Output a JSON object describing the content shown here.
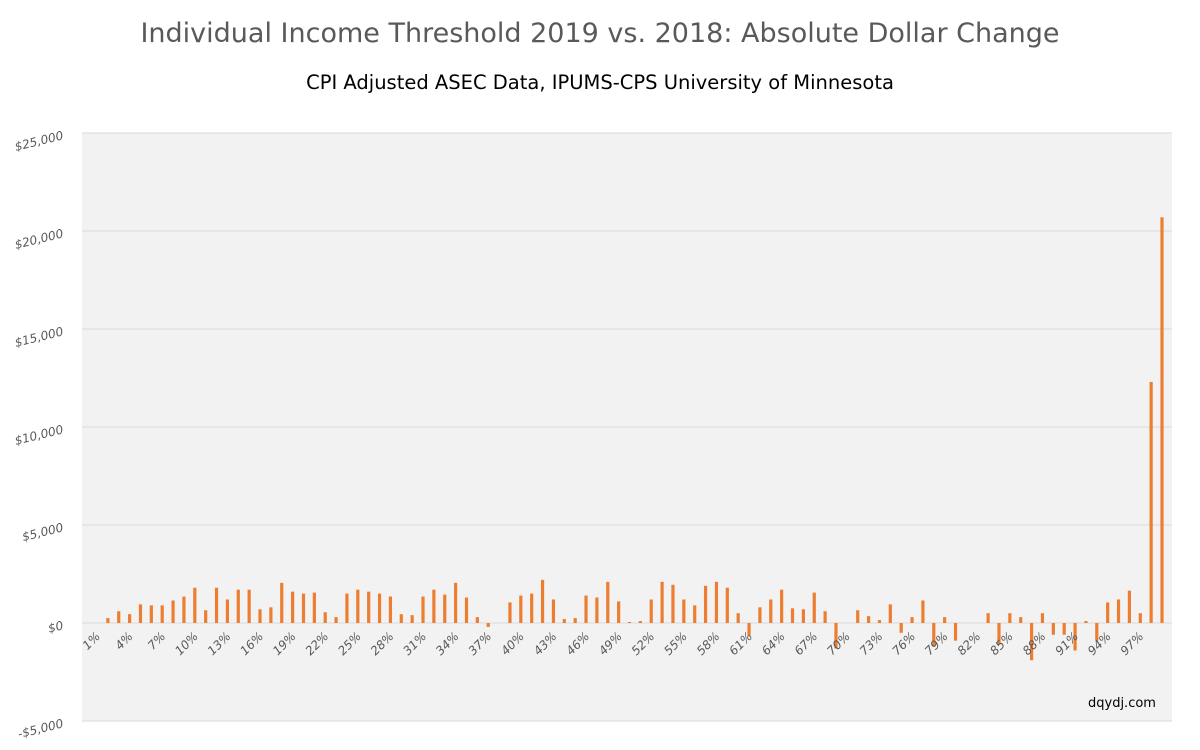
{
  "chart_data": {
    "type": "bar",
    "title": "Individual Income Threshold 2019 vs. 2018: Absolute Dollar Change",
    "subtitle": "CPI Adjusted ASEC Data, IPUMS-CPS University of Minnesota",
    "xlabel": "",
    "ylabel": "",
    "ylim": [
      -5000,
      25000
    ],
    "yticks": [
      -5000,
      0,
      5000,
      10000,
      15000,
      20000,
      25000
    ],
    "ytick_labels": [
      "-$5,000",
      "$0",
      "$5,000",
      "$10,000",
      "$15,000",
      "$20,000",
      "$25,000"
    ],
    "grid": true,
    "bar_color": "#ED7D31",
    "categories": [
      "1%",
      "2%",
      "3%",
      "4%",
      "5%",
      "6%",
      "7%",
      "8%",
      "9%",
      "10%",
      "11%",
      "12%",
      "13%",
      "14%",
      "15%",
      "16%",
      "17%",
      "18%",
      "19%",
      "20%",
      "21%",
      "22%",
      "23%",
      "24%",
      "25%",
      "26%",
      "27%",
      "28%",
      "29%",
      "30%",
      "31%",
      "32%",
      "33%",
      "34%",
      "35%",
      "36%",
      "37%",
      "38%",
      "39%",
      "40%",
      "41%",
      "42%",
      "43%",
      "44%",
      "45%",
      "46%",
      "47%",
      "48%",
      "49%",
      "50%",
      "51%",
      "52%",
      "53%",
      "54%",
      "55%",
      "56%",
      "57%",
      "58%",
      "59%",
      "60%",
      "61%",
      "62%",
      "63%",
      "64%",
      "65%",
      "66%",
      "67%",
      "68%",
      "69%",
      "70%",
      "71%",
      "72%",
      "73%",
      "74%",
      "75%",
      "76%",
      "77%",
      "78%",
      "79%",
      "80%",
      "81%",
      "82%",
      "83%",
      "84%",
      "85%",
      "86%",
      "87%",
      "88%",
      "89%",
      "90%",
      "91%",
      "92%",
      "93%",
      "94%",
      "95%",
      "96%",
      "97%",
      "98%",
      "99%"
    ],
    "shown_tick_labels": [
      "1%",
      "4%",
      "7%",
      "10%",
      "13%",
      "16%",
      "19%",
      "22%",
      "25%",
      "28%",
      "31%",
      "34%",
      "37%",
      "40%",
      "43%",
      "46%",
      "49%",
      "52%",
      "55%",
      "58%",
      "61%",
      "64%",
      "67%",
      "70%",
      "73%",
      "76%",
      "79%",
      "82%",
      "85%",
      "88%",
      "91%",
      "94%",
      "97%"
    ],
    "values": [
      0,
      250,
      600,
      450,
      950,
      900,
      900,
      1150,
      1350,
      1800,
      650,
      1800,
      1200,
      1700,
      1700,
      700,
      800,
      2050,
      1600,
      1500,
      1550,
      550,
      300,
      1500,
      1700,
      1600,
      1500,
      1350,
      450,
      400,
      1350,
      1700,
      1450,
      2050,
      1300,
      300,
      -200,
      0,
      1050,
      1400,
      1500,
      2200,
      1200,
      200,
      250,
      1400,
      1300,
      2100,
      1100,
      50,
      100,
      1200,
      2100,
      1950,
      1200,
      900,
      1900,
      2100,
      1800,
      500,
      -650,
      800,
      1200,
      1700,
      750,
      700,
      1550,
      600,
      -1300,
      0,
      650,
      350,
      150,
      950,
      -500,
      300,
      1150,
      -1200,
      300,
      -900,
      0,
      0,
      500,
      -1100,
      500,
      300,
      -1900,
      500,
      -600,
      -600,
      -1400,
      100,
      -900,
      1050,
      1200,
      1650,
      500,
      12300,
      20700
    ]
  },
  "credit": "dqydj.com"
}
